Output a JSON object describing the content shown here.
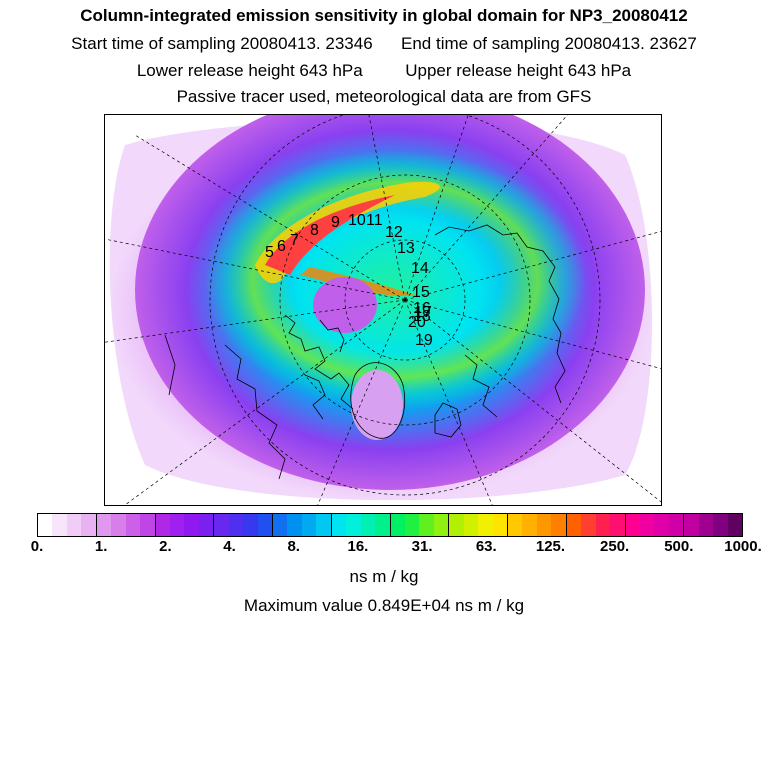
{
  "header": {
    "title": "Column-integrated emission sensitivity in global domain for NP3_20080412",
    "start_time": "Start time of sampling 20080413. 23346",
    "end_time": "End time of sampling 20080413. 23627",
    "lower_release": "Lower release height  643 hPa",
    "upper_release": "Upper release height  643 hPa",
    "tracer_note": "Passive tracer used, meteorological data are from GFS"
  },
  "map": {
    "projection": "north-polar-stereographic",
    "trajectory_labels": [
      "5",
      "6",
      "7",
      "8",
      "9",
      "10",
      "11",
      "12",
      "13",
      "14",
      "15",
      "16",
      "17",
      "18",
      "19",
      "20"
    ]
  },
  "legend": {
    "colors": [
      "#ffffff",
      "#f7e6fb",
      "#f0ccf7",
      "#e8b2f3",
      "#e098ef",
      "#d87eeb",
      "#cc60e8",
      "#c045e6",
      "#b028e6",
      "#a020f0",
      "#9018f0",
      "#7c20f0",
      "#6828f0",
      "#5030f0",
      "#3838f0",
      "#2050f0",
      "#1070f0",
      "#0090f0",
      "#00aaf0",
      "#00c8f0",
      "#00e4f0",
      "#00f0dc",
      "#00f0b4",
      "#00f08c",
      "#00f064",
      "#20f040",
      "#60f020",
      "#90f010",
      "#b0f000",
      "#d0f000",
      "#f0f000",
      "#ffe400",
      "#ffc800",
      "#ffb000",
      "#ff9800",
      "#ff8000",
      "#ff6000",
      "#ff4030",
      "#ff2050",
      "#ff1070",
      "#ff0090",
      "#f000a0",
      "#e000a8",
      "#d000a8",
      "#c000a0",
      "#a00090",
      "#800080",
      "#600060"
    ],
    "ticks": [
      "0.",
      "1.",
      "2.",
      "4.",
      "8.",
      "16.",
      "31.",
      "63.",
      "125.",
      "250.",
      "500.",
      "1000."
    ],
    "unit_label": "ns m / kg",
    "maximum_label": "Maximum value  0.849E+04 ns m / kg"
  }
}
